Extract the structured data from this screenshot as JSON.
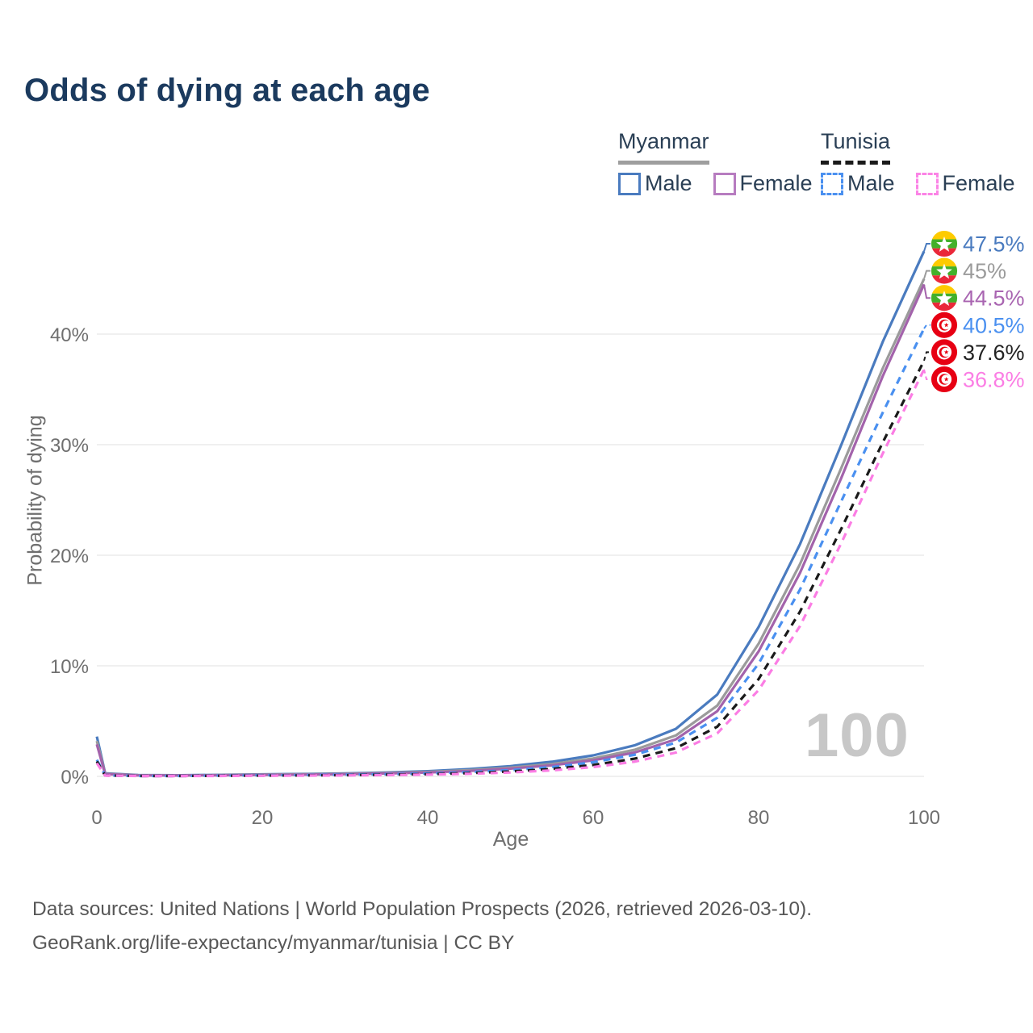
{
  "title": "Odds of dying at each age",
  "legend": {
    "groups": [
      {
        "id": "myanmar",
        "label": "Myanmar",
        "line_style": "solid",
        "line_color": "#9e9e9e",
        "items": [
          {
            "label": "Male",
            "style": "solid",
            "color": "#4a7bbf"
          },
          {
            "label": "Female",
            "style": "solid",
            "color": "#b77cc0"
          }
        ]
      },
      {
        "id": "tunisia",
        "label": "Tunisia",
        "line_style": "dashed",
        "line_color": "#1a1a1a",
        "items": [
          {
            "label": "Male",
            "style": "dashed",
            "color": "#4a90f0"
          },
          {
            "label": "Female",
            "style": "dashed",
            "color": "#fb84e6"
          }
        ]
      }
    ]
  },
  "footer": {
    "line1": "Data sources: United Nations | World Population Prospects (2026, retrieved 2026-03-10).",
    "line2": "GeoRank.org/life-expectancy/myanmar/tunisia | CC BY"
  },
  "chart_data": {
    "type": "line",
    "title": "Odds of dying at each age",
    "xlabel": "Age",
    "ylabel": "Probability of dying",
    "xlim": [
      0,
      100
    ],
    "ylim": [
      0,
      48
    ],
    "grid": true,
    "legend_position": "top-right",
    "age_display": "100",
    "x_ticks": [
      0,
      20,
      40,
      60,
      80,
      100
    ],
    "y_ticks": [
      0,
      10,
      20,
      30,
      40
    ],
    "ages": [
      0,
      1,
      5,
      10,
      15,
      20,
      25,
      30,
      35,
      40,
      45,
      50,
      55,
      60,
      65,
      70,
      75,
      80,
      85,
      90,
      95,
      100
    ],
    "series": [
      {
        "id": "myanmar-male",
        "name": "Myanmar Male",
        "country": "Myanmar",
        "sex": "Male",
        "flag": "myanmar",
        "style": "solid",
        "color": "#4a7bbf",
        "label_color": "#4a7bbf",
        "end_label": "47.5%",
        "end_value": 47.5,
        "values": [
          3.6,
          0.28,
          0.12,
          0.1,
          0.14,
          0.18,
          0.22,
          0.27,
          0.35,
          0.47,
          0.66,
          0.93,
          1.32,
          1.9,
          2.8,
          4.3,
          7.4,
          13.5,
          21.0,
          30.0,
          39.3,
          47.5
        ]
      },
      {
        "id": "myanmar-both",
        "name": "Myanmar",
        "country": "Myanmar",
        "sex": "Both",
        "flag": "myanmar",
        "style": "solid",
        "color": "#9b9b9b",
        "label_color": "#9b9b9b",
        "end_label": "45%",
        "end_value": 45,
        "values": [
          3.2,
          0.24,
          0.1,
          0.09,
          0.12,
          0.15,
          0.19,
          0.23,
          0.3,
          0.4,
          0.56,
          0.79,
          1.12,
          1.62,
          2.4,
          3.7,
          6.4,
          12.0,
          19.2,
          27.9,
          36.9,
          45.0
        ]
      },
      {
        "id": "myanmar-female",
        "name": "Myanmar Female",
        "country": "Myanmar",
        "sex": "Female",
        "flag": "myanmar",
        "style": "solid",
        "color": "#a363ab",
        "label_color": "#a965b1",
        "end_label": "44.5%",
        "end_value": 44.5,
        "values": [
          2.9,
          0.21,
          0.09,
          0.08,
          0.1,
          0.13,
          0.16,
          0.2,
          0.26,
          0.35,
          0.49,
          0.7,
          1.0,
          1.45,
          2.15,
          3.35,
          5.9,
          11.3,
          18.4,
          27.0,
          36.2,
          44.5
        ]
      },
      {
        "id": "tunisia-male",
        "name": "Tunisia Male",
        "country": "Tunisia",
        "sex": "Male",
        "flag": "tunisia",
        "style": "dashed",
        "color": "#4a90f0",
        "label_color": "#4a90f0",
        "end_label": "40.5%",
        "end_value": 40.5,
        "values": [
          1.5,
          0.09,
          0.04,
          0.04,
          0.07,
          0.1,
          0.12,
          0.15,
          0.19,
          0.26,
          0.38,
          0.56,
          0.84,
          1.28,
          1.95,
          3.05,
          5.3,
          10.2,
          16.9,
          24.9,
          32.9,
          40.5
        ]
      },
      {
        "id": "tunisia-both",
        "name": "Tunisia",
        "country": "Tunisia",
        "sex": "Both",
        "flag": "tunisia",
        "style": "dashed",
        "color": "#1a1a1a",
        "label_color": "#222222",
        "end_label": "37.6%",
        "end_value": 37.6,
        "values": [
          1.35,
          0.08,
          0.035,
          0.035,
          0.05,
          0.07,
          0.09,
          0.11,
          0.15,
          0.2,
          0.29,
          0.44,
          0.67,
          1.03,
          1.6,
          2.55,
          4.5,
          8.8,
          14.9,
          22.4,
          30.2,
          37.6
        ]
      },
      {
        "id": "tunisia-female",
        "name": "Tunisia Female",
        "country": "Tunisia",
        "sex": "Female",
        "flag": "tunisia",
        "style": "dashed",
        "color": "#fb7de4",
        "label_color": "#fb7de4",
        "end_label": "36.8%",
        "end_value": 36.8,
        "values": [
          1.2,
          0.07,
          0.03,
          0.03,
          0.04,
          0.06,
          0.07,
          0.09,
          0.12,
          0.16,
          0.23,
          0.35,
          0.54,
          0.84,
          1.33,
          2.15,
          3.9,
          7.8,
          13.6,
          21.1,
          29.2,
          36.8
        ]
      }
    ]
  }
}
